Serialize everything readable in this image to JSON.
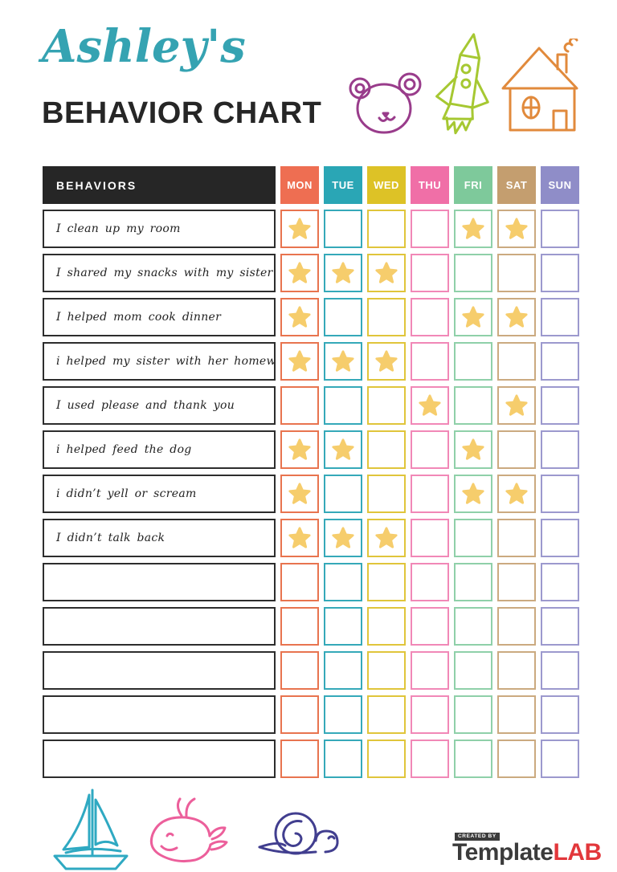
{
  "header": {
    "script_title": "Ashley's",
    "script_title_color": "#35A3B2",
    "main_title": "BEHAVIOR CHART",
    "main_title_color": "#262626"
  },
  "decor": {
    "top_icons": [
      "bear-icon",
      "rocket-icon",
      "house-icon"
    ],
    "bottom_icons": [
      "sailboat-icon",
      "whale-icon",
      "snail-icon"
    ],
    "colors": {
      "bear": "#993C8B",
      "rocket": "#A6C832",
      "house": "#E18A3C",
      "sailboat": "#2FA9C2",
      "whale": "#EC5F9B",
      "snail": "#413E8F"
    }
  },
  "chart": {
    "behaviors_header": "BEHAVIORS",
    "star_color": "#F6CD6C",
    "days": [
      {
        "label": "MON",
        "color": "#EE6E52",
        "cell_border": "#E8744F"
      },
      {
        "label": "TUE",
        "color": "#2AA6B5",
        "cell_border": "#35A9B9"
      },
      {
        "label": "WED",
        "color": "#DDC226",
        "cell_border": "#E0C53B"
      },
      {
        "label": "THU",
        "color": "#F06FA7",
        "cell_border": "#F188B7"
      },
      {
        "label": "FRI",
        "color": "#7EC99B",
        "cell_border": "#8FD0A9"
      },
      {
        "label": "SAT",
        "color": "#C49E6F",
        "cell_border": "#CBAA80"
      },
      {
        "label": "SUN",
        "color": "#8F8DC8",
        "cell_border": "#9C99CE"
      }
    ],
    "rows": [
      {
        "label": "I clean up my room",
        "stars": [
          1,
          0,
          0,
          0,
          1,
          1,
          0
        ]
      },
      {
        "label": "I shared my snacks with my sister",
        "stars": [
          1,
          1,
          1,
          0,
          0,
          0,
          0
        ]
      },
      {
        "label": "I helped mom cook dinner",
        "stars": [
          1,
          0,
          0,
          0,
          1,
          1,
          0
        ]
      },
      {
        "label": "i helped my sister with her homework",
        "stars": [
          1,
          1,
          1,
          0,
          0,
          0,
          0
        ]
      },
      {
        "label": "I used please and thank you",
        "stars": [
          0,
          0,
          0,
          1,
          0,
          1,
          0
        ]
      },
      {
        "label": "i helped feed the dog",
        "stars": [
          1,
          1,
          0,
          0,
          1,
          0,
          0
        ]
      },
      {
        "label": "i didn’t yell or scream",
        "stars": [
          1,
          0,
          0,
          0,
          1,
          1,
          0
        ]
      },
      {
        "label": "I didn’t talk back",
        "stars": [
          1,
          1,
          1,
          0,
          0,
          0,
          0
        ]
      },
      {
        "label": "",
        "stars": [
          0,
          0,
          0,
          0,
          0,
          0,
          0
        ]
      },
      {
        "label": "",
        "stars": [
          0,
          0,
          0,
          0,
          0,
          0,
          0
        ]
      },
      {
        "label": "",
        "stars": [
          0,
          0,
          0,
          0,
          0,
          0,
          0
        ]
      },
      {
        "label": "",
        "stars": [
          0,
          0,
          0,
          0,
          0,
          0,
          0
        ]
      },
      {
        "label": "",
        "stars": [
          0,
          0,
          0,
          0,
          0,
          0,
          0
        ]
      }
    ]
  },
  "footer": {
    "logo": {
      "created_by": "CREATED BY",
      "brand_primary": "Template",
      "brand_accent": "LAB",
      "primary_color": "#3B3B3B",
      "accent_color": "#E2373B"
    }
  }
}
